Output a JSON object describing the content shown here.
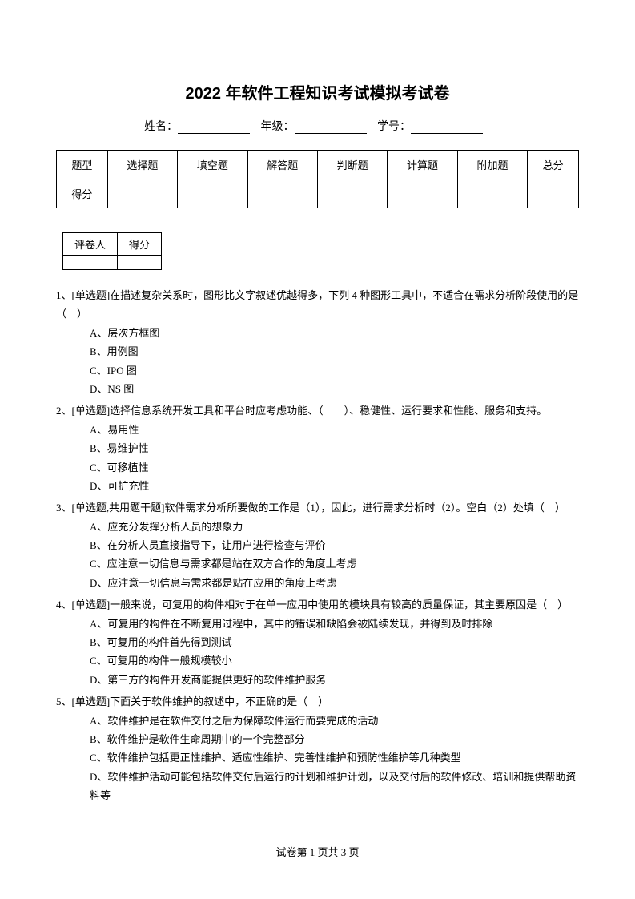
{
  "title": "2022 年软件工程知识考试模拟考试卷",
  "info": {
    "name_label": "姓名：",
    "grade_label": "年级：",
    "id_label": "学号："
  },
  "score_table": {
    "headers": [
      "题型",
      "选择题",
      "填空题",
      "解答题",
      "判断题",
      "计算题",
      "附加题",
      "总分"
    ],
    "row_label": "得分"
  },
  "grader_table": {
    "col1": "评卷人",
    "col2": "得分"
  },
  "questions": [
    {
      "num": "1、",
      "text": "[单选题]在描述复杂关系时，图形比文字叙述优越得多，下列 4 种图形工具中，不适合在需求分析阶段使用的是（　）",
      "options": [
        "A、层次方框图",
        "B、用例图",
        "C、IPO 图",
        "D、NS 图"
      ]
    },
    {
      "num": "2、",
      "text": "[单选题]选择信息系统开发工具和平台时应考虑功能、（　　）、稳健性、运行要求和性能、服务和支持。",
      "options": [
        "A、易用性",
        "B、易维护性",
        "C、可移植性",
        "D、可扩充性"
      ]
    },
    {
      "num": "3、",
      "text": "[单选题,共用题干题]软件需求分析所要做的工作是（1），因此，进行需求分析时（2）。空白（2）处填（　）",
      "options": [
        "A、应充分发挥分析人员的想象力",
        "B、在分析人员直接指导下，让用户进行检查与评价",
        "C、应注意一切信息与需求都是站在双方合作的角度上考虑",
        "D、应注意一切信息与需求都是站在应用的角度上考虑"
      ]
    },
    {
      "num": "4、",
      "text": "[单选题]一般来说，可复用的构件相对于在单一应用中使用的模块具有较高的质量保证，其主要原因是（　）",
      "options": [
        "A、可复用的构件在不断复用过程中，其中的错误和缺陷会被陆续发现，并得到及时排除",
        "B、可复用的构件首先得到测试",
        "C、可复用的构件一般规模较小",
        "D、第三方的构件开发商能提供更好的软件维护服务"
      ]
    },
    {
      "num": "5、",
      "text": "[单选题]下面关于软件维护的叙述中，不正确的是（　）",
      "options": [
        "A、软件维护是在软件交付之后为保障软件运行而要完成的活动",
        "B、软件维护是软件生命周期中的一个完整部分",
        "C、软件维护包括更正性维护、适应性维护、完善性维护和预防性维护等几种类型",
        "D、软件维护活动可能包括软件交付后运行的计划和维护计划，以及交付后的软件修改、培训和提供帮助资料等"
      ]
    }
  ],
  "footer": {
    "prefix": "试卷第 ",
    "page": "1",
    "middle": " 页共 ",
    "total": "3",
    "suffix": " 页"
  }
}
